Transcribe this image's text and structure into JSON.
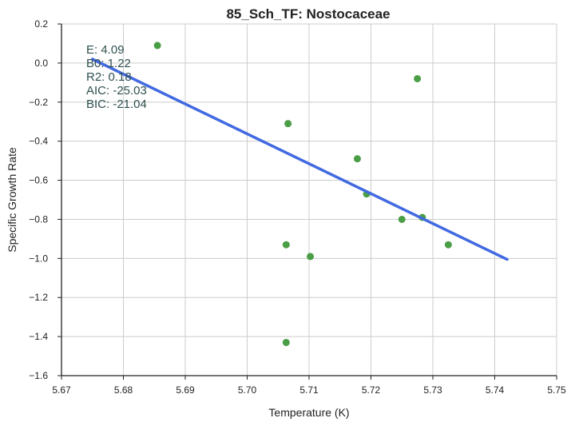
{
  "chart_data": {
    "type": "scatter",
    "title": "85_Sch_TF: Nostocaceae",
    "xlabel": "Temperature (K)",
    "ylabel": "Specific Growth Rate",
    "xlim": [
      5.67,
      5.75
    ],
    "ylim": [
      -1.6,
      0.2
    ],
    "xticks": [
      5.67,
      5.68,
      5.69,
      5.7,
      5.71,
      5.72,
      5.73,
      5.74,
      5.75
    ],
    "xtick_labels": [
      "5.67",
      "5.68",
      "5.69",
      "5.70",
      "5.71",
      "5.72",
      "5.73",
      "5.74",
      "5.75"
    ],
    "yticks": [
      0.2,
      0.0,
      -0.2,
      -0.4,
      -0.6,
      -0.8,
      -1.0,
      -1.2,
      -1.4,
      -1.6
    ],
    "ytick_labels": [
      "0.2",
      "0.0",
      "−0.2",
      "−0.4",
      "−0.6",
      "−0.8",
      "−1.0",
      "−1.2",
      "−1.4",
      "−1.6"
    ],
    "grid": true,
    "points": {
      "color": "#4a9e45",
      "x": [
        5.6855,
        5.7275,
        5.7066,
        5.7178,
        5.7193,
        5.725,
        5.7283,
        5.7325,
        5.7063,
        5.7102,
        5.7063
      ],
      "y": [
        0.09,
        -0.08,
        -0.31,
        -0.49,
        -0.67,
        -0.8,
        -0.79,
        -0.93,
        -0.93,
        -0.99,
        -1.43
      ]
    },
    "fit_line": {
      "color": "#4169e1",
      "x": [
        5.675,
        5.742
      ],
      "y": [
        0.02,
        -1.005
      ]
    },
    "annotations": [
      "E:  4.09",
      "B0:  1.22",
      "R2:  0.18",
      "AIC: -25.03",
      "BIC: -21.04"
    ]
  }
}
